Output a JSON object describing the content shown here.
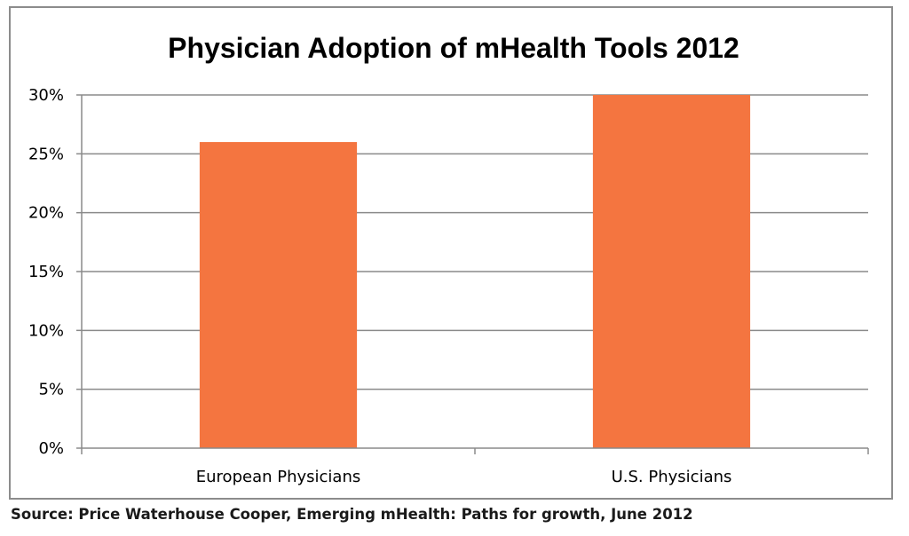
{
  "chart_data": {
    "type": "bar",
    "title": "Physician Adoption of mHealth Tools 2012",
    "categories": [
      "European Physicians",
      "U.S. Physicians"
    ],
    "values": [
      26,
      30
    ],
    "xlabel": "",
    "ylabel": "",
    "ylim": [
      0,
      30
    ],
    "yticks": [
      "0%",
      "5%",
      "10%",
      "15%",
      "20%",
      "25%",
      "30%"
    ],
    "ytick_values": [
      0,
      5,
      10,
      15,
      20,
      25,
      30
    ],
    "bar_color": "#F47540",
    "grid": true,
    "legend": "none"
  },
  "source": "Source: Price Waterhouse Cooper, Emerging mHealth: Paths for growth, June 2012"
}
